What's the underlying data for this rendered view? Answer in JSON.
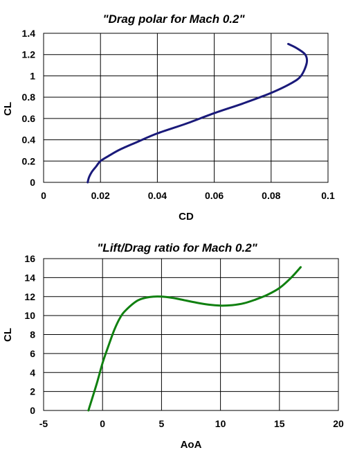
{
  "chart_data": [
    {
      "type": "line",
      "title": "\"Drag polar for Mach 0.2\"",
      "xlabel": "CD",
      "ylabel": "CL",
      "xlim": [
        0,
        0.1
      ],
      "ylim": [
        0,
        1.4
      ],
      "xticks": [
        "0",
        "0.02",
        "0.04",
        "0.06",
        "0.08",
        "0.1"
      ],
      "yticks": [
        "0",
        "0.2",
        "0.4",
        "0.6",
        "0.8",
        "1",
        "1.2",
        "1.4"
      ],
      "grid": true,
      "series": [
        {
          "color": "#1a1a7a",
          "x": [
            0.0155,
            0.016,
            0.017,
            0.0185,
            0.02,
            0.023,
            0.027,
            0.033,
            0.04,
            0.05,
            0.06,
            0.07,
            0.08,
            0.087,
            0.0905,
            0.0925,
            0.092,
            0.089,
            0.086
          ],
          "y": [
            0.0,
            0.05,
            0.1,
            0.15,
            0.2,
            0.25,
            0.31,
            0.38,
            0.46,
            0.55,
            0.65,
            0.74,
            0.84,
            0.93,
            1.0,
            1.12,
            1.2,
            1.26,
            1.3
          ]
        }
      ]
    },
    {
      "type": "line",
      "title": "\"Lift/Drag ratio for Mach 0.2\"",
      "xlabel": "AoA",
      "ylabel": "CL",
      "xlim": [
        -5,
        20
      ],
      "ylim": [
        0,
        16
      ],
      "xticks": [
        "-5",
        "0",
        "5",
        "10",
        "15",
        "20"
      ],
      "yticks": [
        "0",
        "2",
        "4",
        "6",
        "8",
        "10",
        "12",
        "14",
        "16"
      ],
      "grid": true,
      "series": [
        {
          "color": "#108010",
          "x": [
            -1.2,
            -0.5,
            0,
            0.5,
            1,
            1.5,
            2,
            3,
            4,
            5,
            6,
            7,
            8,
            9,
            10,
            11,
            12,
            13,
            14,
            15,
            16,
            16.8
          ],
          "y": [
            0,
            2.8,
            5,
            6.8,
            8.5,
            9.8,
            10.6,
            11.6,
            11.95,
            12.0,
            11.85,
            11.6,
            11.35,
            11.15,
            11.05,
            11.1,
            11.3,
            11.7,
            12.2,
            12.9,
            14.0,
            15.1
          ]
        }
      ]
    }
  ]
}
